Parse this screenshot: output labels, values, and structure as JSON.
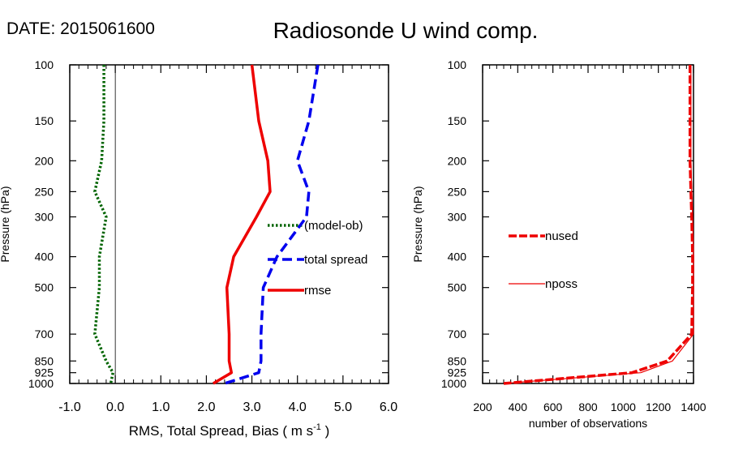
{
  "header": {
    "date_label": "DATE: 2015061600",
    "title": "Radiosonde U wind comp."
  },
  "chart_data": [
    {
      "type": "line",
      "ylabel": "Pressure (hPa)",
      "xlabel_main": "RMS, Total Spread, Bias ( m s",
      "xlabel_sup": "-1",
      "xlabel_end": " )",
      "y_scale": "log",
      "y_reversed": true,
      "ylim": [
        1000,
        100
      ],
      "xlim": [
        -1.0,
        6.0
      ],
      "x_ticks": [
        -1.0,
        0.0,
        1.0,
        2.0,
        3.0,
        4.0,
        5.0,
        6.0
      ],
      "x_tick_labels": [
        "-1.0",
        "0.0",
        "1.0",
        "2.0",
        "3.0",
        "4.0",
        "5.0",
        "6.0"
      ],
      "y_ticks": [
        100,
        150,
        200,
        250,
        300,
        400,
        500,
        700,
        850,
        925,
        1000
      ],
      "y_tick_labels": [
        "100",
        "150",
        "200",
        "250",
        "300",
        "400",
        "500",
        "700",
        "850",
        "925",
        "1000"
      ],
      "zero_line": 0,
      "legend_position": "middle-right",
      "series": [
        {
          "name": "(model-ob)",
          "color": "#006400",
          "style": "dotted",
          "points": [
            [
              -0.25,
              100
            ],
            [
              -0.25,
              150
            ],
            [
              -0.3,
              200
            ],
            [
              -0.45,
              250
            ],
            [
              -0.2,
              300
            ],
            [
              -0.35,
              400
            ],
            [
              -0.35,
              500
            ],
            [
              -0.45,
              700
            ],
            [
              -0.2,
              850
            ],
            [
              -0.05,
              925
            ],
            [
              -0.1,
              1000
            ]
          ]
        },
        {
          "name": "total spread",
          "color": "#0000ee",
          "style": "dashed",
          "points": [
            [
              4.45,
              100
            ],
            [
              4.25,
              150
            ],
            [
              4.0,
              200
            ],
            [
              4.25,
              250
            ],
            [
              4.2,
              300
            ],
            [
              3.55,
              400
            ],
            [
              3.25,
              500
            ],
            [
              3.2,
              700
            ],
            [
              3.2,
              850
            ],
            [
              3.15,
              925
            ],
            [
              2.4,
              1000
            ]
          ]
        },
        {
          "name": "rmse",
          "color": "#ee0000",
          "style": "solid",
          "points": [
            [
              3.0,
              100
            ],
            [
              3.15,
              150
            ],
            [
              3.35,
              200
            ],
            [
              3.4,
              250
            ],
            [
              3.1,
              300
            ],
            [
              2.6,
              400
            ],
            [
              2.45,
              500
            ],
            [
              2.5,
              700
            ],
            [
              2.5,
              850
            ],
            [
              2.55,
              925
            ],
            [
              2.15,
              1000
            ]
          ]
        }
      ]
    },
    {
      "type": "line",
      "ylabel": "Pressure (hPa)",
      "xlabel": "number of observations",
      "y_scale": "log",
      "y_reversed": true,
      "ylim": [
        1000,
        100
      ],
      "xlim": [
        200,
        1400
      ],
      "x_ticks": [
        200,
        400,
        600,
        800,
        1000,
        1200,
        1400
      ],
      "x_tick_labels": [
        "200",
        "400",
        "600",
        "800",
        "1000",
        "1200",
        "1400"
      ],
      "y_ticks": [
        100,
        150,
        200,
        250,
        300,
        400,
        500,
        700,
        850,
        925,
        1000
      ],
      "y_tick_labels": [
        "100",
        "150",
        "200",
        "250",
        "300",
        "400",
        "500",
        "700",
        "850",
        "925",
        "1000"
      ],
      "legend_position": "middle-left",
      "series": [
        {
          "name": "nused",
          "color": "#ee0000",
          "style": "dashed-thick",
          "points": [
            [
              1380,
              100
            ],
            [
              1380,
              150
            ],
            [
              1380,
              200
            ],
            [
              1385,
              250
            ],
            [
              1390,
              300
            ],
            [
              1395,
              400
            ],
            [
              1395,
              500
            ],
            [
              1390,
              700
            ],
            [
              1250,
              850
            ],
            [
              1050,
              925
            ],
            [
              320,
              1000
            ]
          ]
        },
        {
          "name": "nposs",
          "color": "#ee0000",
          "style": "thin",
          "points": [
            [
              1385,
              100
            ],
            [
              1385,
              150
            ],
            [
              1385,
              200
            ],
            [
              1390,
              250
            ],
            [
              1395,
              300
            ],
            [
              1400,
              400
            ],
            [
              1400,
              500
            ],
            [
              1400,
              700
            ],
            [
              1280,
              850
            ],
            [
              1100,
              925
            ],
            [
              320,
              1000
            ]
          ]
        }
      ]
    }
  ]
}
